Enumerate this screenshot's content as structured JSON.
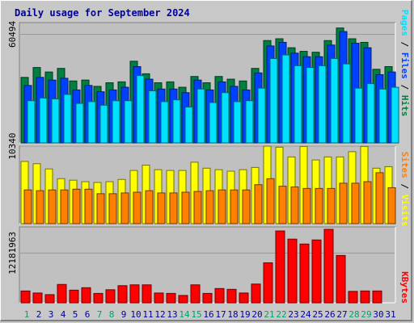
{
  "title": "Daily usage for September 2024",
  "colors": {
    "title": "#0000a0",
    "hits": "#008040",
    "files": "#0040ff",
    "pages": "#00e0ff",
    "visits": "#ffff00",
    "sites": "#ff8000",
    "kbytes": "#ff0000",
    "weekend_day": "#00a070",
    "weekday": "#0000a0"
  },
  "chart_data": [
    {
      "type": "bar",
      "panel": "hits-files-pages",
      "categories": [
        "1",
        "2",
        "3",
        "4",
        "5",
        "6",
        "7",
        "8",
        "9",
        "10",
        "11",
        "12",
        "13",
        "14",
        "15",
        "16",
        "17",
        "18",
        "19",
        "20",
        "21",
        "22",
        "23",
        "24",
        "25",
        "26",
        "27",
        "28",
        "29",
        "30",
        "31"
      ],
      "ytick_label": "60494",
      "ytick_value": 60494,
      "ylim": [
        0,
        67000
      ],
      "right_labels": [
        "Pages",
        "Files",
        "Hits"
      ],
      "series": [
        {
          "name": "Hits",
          "values": [
            36500,
            42000,
            39500,
            41500,
            34500,
            35000,
            31500,
            33500,
            34000,
            45500,
            38500,
            33500,
            34000,
            31000,
            37000,
            33500,
            37000,
            35500,
            34500,
            41500,
            57000,
            58000,
            53000,
            51000,
            50500,
            57000,
            64000,
            58000,
            56000,
            41000,
            42500
          ]
        },
        {
          "name": "Files",
          "values": [
            32000,
            36500,
            35000,
            36000,
            29500,
            32000,
            28500,
            29500,
            31000,
            42500,
            35500,
            30000,
            30000,
            28000,
            35000,
            29500,
            34000,
            31500,
            29500,
            39000,
            54000,
            56000,
            50000,
            48000,
            48000,
            54500,
            62000,
            55500,
            53000,
            38000,
            39500
          ]
        },
        {
          "name": "Pages",
          "values": [
            23500,
            25000,
            24500,
            27000,
            22000,
            23000,
            21000,
            23500,
            23500,
            37500,
            29000,
            23000,
            24000,
            20000,
            30000,
            22500,
            28000,
            23000,
            23500,
            30500,
            47000,
            49000,
            43000,
            42000,
            43000,
            47000,
            44000,
            30500,
            33000,
            30000,
            31000
          ]
        }
      ]
    },
    {
      "type": "bar",
      "panel": "visits-sites",
      "categories": [
        "1",
        "2",
        "3",
        "4",
        "5",
        "6",
        "7",
        "8",
        "9",
        "10",
        "11",
        "12",
        "13",
        "14",
        "15",
        "16",
        "17",
        "18",
        "19",
        "20",
        "21",
        "22",
        "23",
        "24",
        "25",
        "26",
        "27",
        "28",
        "29",
        "30",
        "31"
      ],
      "ytick_label": "10340",
      "ytick_value": 10340,
      "ylim": [
        0,
        10340
      ],
      "right_labels": [
        "Sites",
        "Visits"
      ],
      "series": [
        {
          "name": "Visits",
          "values": [
            8300,
            8000,
            7300,
            6000,
            5800,
            5600,
            5500,
            5600,
            5900,
            7100,
            7800,
            7200,
            7100,
            7100,
            8200,
            7400,
            7200,
            7000,
            7200,
            7500,
            10340,
            10200,
            8900,
            10300,
            8500,
            8900,
            8900,
            9600,
            10300,
            7400,
            7600
          ]
        },
        {
          "name": "Sites",
          "values": [
            4500,
            4400,
            4500,
            4500,
            4600,
            4600,
            4000,
            4000,
            4100,
            4200,
            4400,
            4100,
            4100,
            4200,
            4300,
            4400,
            4500,
            4500,
            4500,
            5200,
            6000,
            5000,
            4900,
            4700,
            4700,
            4700,
            5400,
            5400,
            5600,
            6800,
            4800
          ]
        }
      ]
    },
    {
      "type": "bar",
      "panel": "kbytes",
      "categories": [
        "1",
        "2",
        "3",
        "4",
        "5",
        "6",
        "7",
        "8",
        "9",
        "10",
        "11",
        "12",
        "13",
        "14",
        "15",
        "16",
        "17",
        "18",
        "19",
        "20",
        "21",
        "22",
        "23",
        "24",
        "25",
        "26",
        "27",
        "28",
        "29",
        "30",
        "31"
      ],
      "ytick_label": "12181963",
      "ytick_value": 12181963,
      "ylim": [
        0,
        18600000
      ],
      "right_labels": [
        "KBytes"
      ],
      "series": [
        {
          "name": "KBytes",
          "values": [
            2900000,
            2400000,
            2000000,
            4500000,
            3100000,
            3700000,
            2300000,
            3200000,
            4200000,
            4400000,
            4400000,
            2400000,
            2300000,
            1800000,
            4400000,
            2300000,
            3500000,
            3300000,
            2400000,
            4600000,
            9800000,
            17600000,
            15600000,
            14400000,
            15400000,
            18000000,
            11600000,
            2800000,
            2900000,
            2900000,
            0
          ]
        }
      ]
    }
  ],
  "day_labels": [
    "1",
    "2",
    "3",
    "4",
    "5",
    "6",
    "7",
    "8",
    "9",
    "10",
    "11",
    "12",
    "13",
    "14",
    "15",
    "16",
    "17",
    "18",
    "19",
    "20",
    "21",
    "22",
    "23",
    "24",
    "25",
    "26",
    "27",
    "28",
    "29",
    "30",
    "31"
  ],
  "weekend_days": [
    "1",
    "7",
    "8",
    "14",
    "15",
    "21",
    "22",
    "28",
    "29"
  ]
}
